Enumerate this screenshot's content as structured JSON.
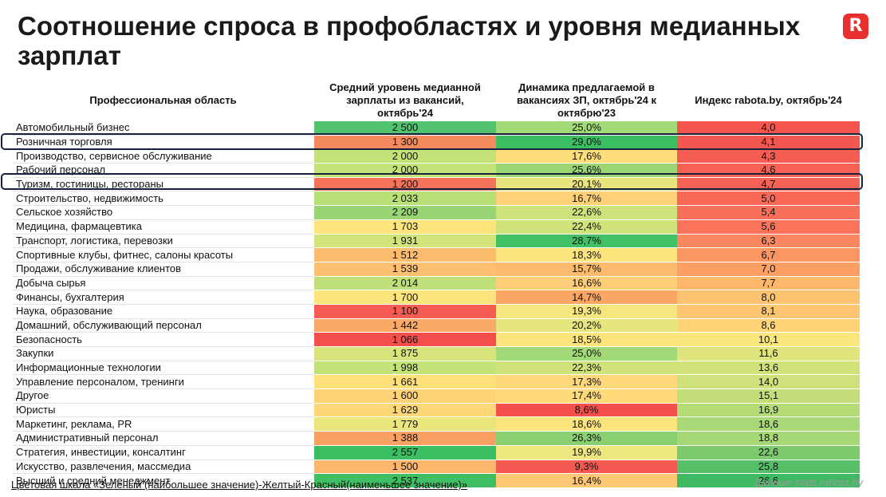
{
  "title": "Соотношение спроса в профобластях и уровня медианных зарплат",
  "logo_letter": "R",
  "table": {
    "headers": [
      "Профессиональная область",
      "Средний уровень медианной зарплаты из вакансий, октябрь'24",
      "Динамика предлагаемой в вакансиях ЗП, октябрь'24 к октябрю'23",
      "Индекс rabota.by, октябрь'24"
    ],
    "rows": [
      {
        "area": "Автомобильный бизнес",
        "salary": "2 500",
        "dynamics": "25,0%",
        "index": "4,0",
        "c1": "#52c470",
        "c2": "#a3da78",
        "c3": "#f4554d"
      },
      {
        "area": "Розничная торговля",
        "salary": "1 300",
        "dynamics": "29,0%",
        "index": "4,1",
        "c1": "#f58a5e",
        "c2": "#3cbf63",
        "c3": "#f4574f"
      },
      {
        "area": "Производство, сервисное обслуживание",
        "salary": "2 000",
        "dynamics": "17,6%",
        "index": "4,3",
        "c1": "#c3e278",
        "c2": "#fedd7b",
        "c3": "#f55d52"
      },
      {
        "area": "Рабочий персонал",
        "salary": "2 000",
        "dynamics": "25,6%",
        "index": "4,6",
        "c1": "#c3e278",
        "c2": "#9bd675",
        "c3": "#f66154"
      },
      {
        "area": "Туризм, гостиницы, рестораны",
        "salary": "1 200",
        "dynamics": "20,1%",
        "index": "4,7",
        "c1": "#f4735a",
        "c2": "#e8e57e",
        "c3": "#f66255"
      },
      {
        "area": "Строительство, недвижимость",
        "salary": "2 033",
        "dynamics": "16,7%",
        "index": "5,0",
        "c1": "#b9df77",
        "c2": "#fed078",
        "c3": "#f76856"
      },
      {
        "area": "Сельское хозяйство",
        "salary": "2 209",
        "dynamics": "22,6%",
        "index": "5,4",
        "c1": "#9ad575",
        "c2": "#cde27a",
        "c3": "#f8705a"
      },
      {
        "area": "Медицина, фармацевтика",
        "salary": "1 703",
        "dynamics": "22,4%",
        "index": "5,6",
        "c1": "#fee47c",
        "c2": "#d0e37b",
        "c3": "#f9745a"
      },
      {
        "area": "Транспорт, логистика, перевозки",
        "salary": "1 931",
        "dynamics": "28,7%",
        "index": "6,3",
        "c1": "#d2e47a",
        "c2": "#41c065",
        "c3": "#f9875f"
      },
      {
        "area": "Спортивные клубы, фитнес, салоны красоты",
        "salary": "1 512",
        "dynamics": "18,3%",
        "index": "6,7",
        "c1": "#fdbb6e",
        "c2": "#fee47c",
        "c3": "#fb9562"
      },
      {
        "area": "Продажи, обслуживание клиентов",
        "salary": "1 539",
        "dynamics": "15,7%",
        "index": "7,0",
        "c1": "#fdc070",
        "c2": "#fdbb6e",
        "c3": "#fc9f65"
      },
      {
        "area": "Добыча сырья",
        "salary": "2 014",
        "dynamics": "16,6%",
        "index": "7,7",
        "c1": "#bfe078",
        "c2": "#fecd77",
        "c3": "#fdb86b"
      },
      {
        "area": "Финансы, бухгалтерия",
        "salary": "1 700",
        "dynamics": "14,7%",
        "index": "8,0",
        "c1": "#fee47c",
        "c2": "#fca666",
        "c3": "#fec371"
      },
      {
        "area": "Наука, образование",
        "salary": "1 100",
        "dynamics": "19,3%",
        "index": "8,1",
        "c1": "#f55c53",
        "c2": "#f5e67e",
        "c3": "#fec673"
      },
      {
        "area": "Домашний, обслуживающий персонал",
        "salary": "1 442",
        "dynamics": "20,2%",
        "index": "8,6",
        "c1": "#fba967",
        "c2": "#e6e67e",
        "c3": "#fed477"
      },
      {
        "area": "Безопасность",
        "salary": "1 066",
        "dynamics": "18,5%",
        "index": "10,1",
        "c1": "#f34f4d",
        "c2": "#fee47c",
        "c3": "#f9e67c"
      },
      {
        "area": "Закупки",
        "salary": "1 875",
        "dynamics": "25,0%",
        "index": "11,6",
        "c1": "#d8e47b",
        "c2": "#a3da78",
        "c3": "#e0e47c"
      },
      {
        "area": "Информационные технологии",
        "salary": "1 998",
        "dynamics": "22,3%",
        "index": "13,6",
        "c1": "#c3e278",
        "c2": "#d0e37b",
        "c3": "#d2e27a"
      },
      {
        "area": "Управление персоналом, тренинги",
        "salary": "1 661",
        "dynamics": "17,3%",
        "index": "14,0",
        "c1": "#fee07b",
        "c2": "#fed87a",
        "c3": "#cfe17a"
      },
      {
        "area": "Другое",
        "salary": "1 600",
        "dynamics": "17,4%",
        "index": "15,1",
        "c1": "#fed276",
        "c2": "#feda7a",
        "c3": "#c4df79"
      },
      {
        "area": "Юристы",
        "salary": "1 629",
        "dynamics": "8,6%",
        "index": "16,9",
        "c1": "#fed878",
        "c2": "#f34f4d",
        "c3": "#b6dc77"
      },
      {
        "area": "Маркетинг, реклама, PR",
        "salary": "1 779",
        "dynamics": "18,6%",
        "index": "18,6",
        "c1": "#ebe57d",
        "c2": "#fee47c",
        "c3": "#a8d976"
      },
      {
        "area": "Административный персонал",
        "salary": "1 388",
        "dynamics": "26,3%",
        "index": "18,8",
        "c1": "#f9a063",
        "c2": "#8ad072",
        "c3": "#a6d875"
      },
      {
        "area": "Стратегия, инвестиции, консалтинг",
        "salary": "2 557",
        "dynamics": "19,9%",
        "index": "22,6",
        "c1": "#3bbd62",
        "c2": "#eee67e",
        "c3": "#7bcb6e"
      },
      {
        "area": "Искусство, развлечения, массмедиа",
        "salary": "1 500",
        "dynamics": "9,3%",
        "index": "25,8",
        "c1": "#fdb76d",
        "c2": "#f45a51",
        "c3": "#55c068"
      },
      {
        "area": "Высший и средний менеджмент",
        "salary": "2 537",
        "dynamics": "16,4%",
        "index": "26,6",
        "c1": "#3fbe63",
        "c2": "#fec874",
        "c3": "#3fba63"
      }
    ]
  },
  "footer": {
    "scale_note": "Цветовая шкала «Зеленый (наибольшее значение)-Желтый-Красный(наименьшее значение)»",
    "source": "Данные stats.rabota.by"
  }
}
